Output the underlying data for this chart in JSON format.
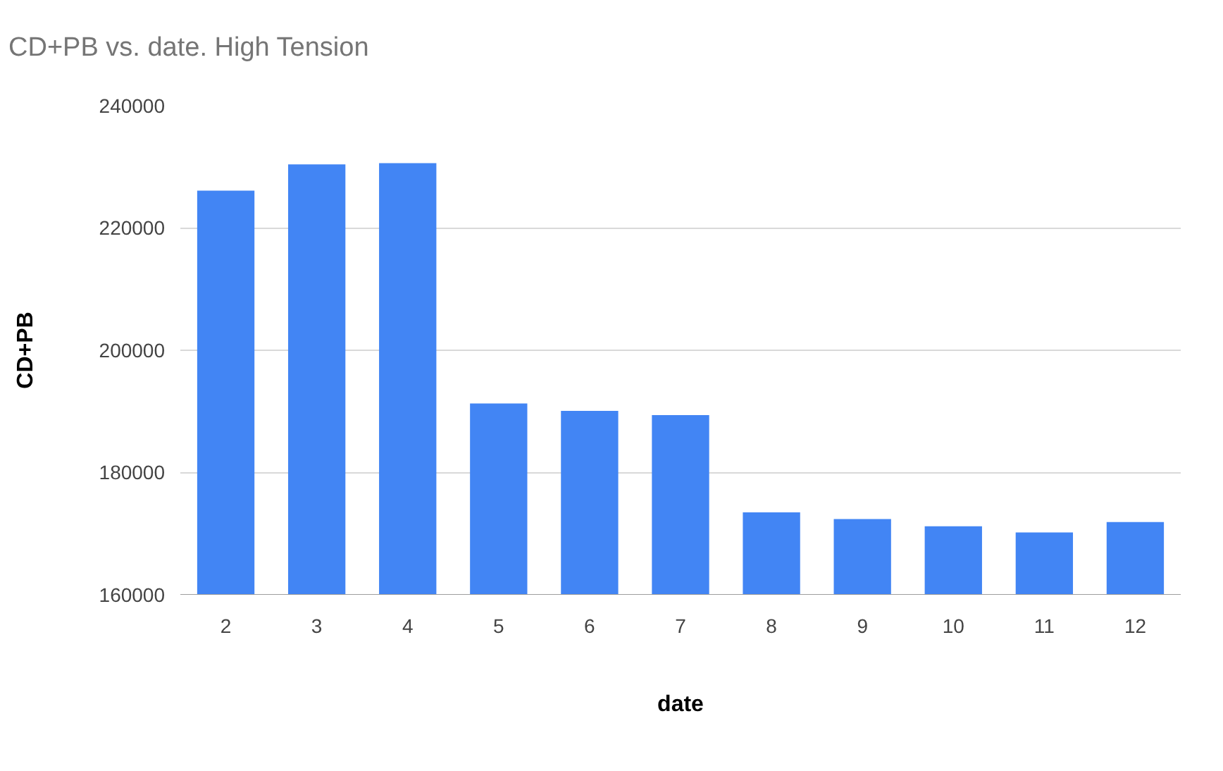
{
  "chart_data": {
    "type": "bar",
    "title": "CD+PB vs. date. High Tension",
    "xlabel": "date",
    "ylabel": "CD+PB",
    "categories": [
      "2",
      "3",
      "4",
      "5",
      "6",
      "7",
      "8",
      "9",
      "10",
      "11",
      "12"
    ],
    "values": [
      226100,
      230400,
      230600,
      191300,
      190100,
      189400,
      173500,
      172400,
      171200,
      170200,
      171900
    ],
    "color": "#4285f4",
    "ylim": [
      160000,
      240000
    ],
    "yticks": [
      160000,
      180000,
      200000,
      220000,
      240000
    ],
    "grid": "y"
  }
}
